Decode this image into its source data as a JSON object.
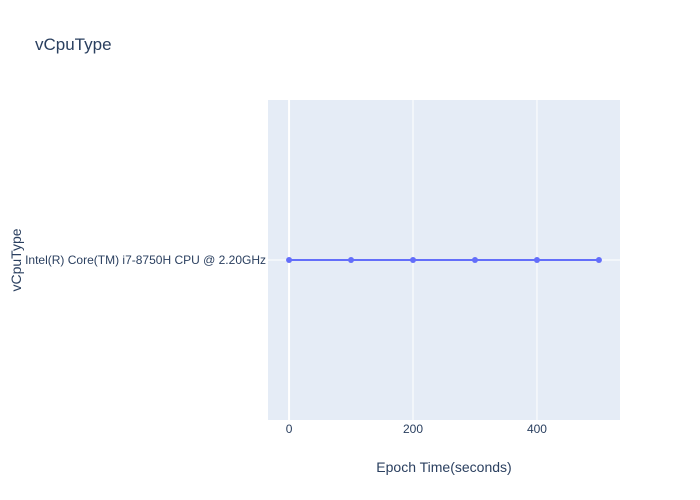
{
  "chart_data": {
    "type": "line",
    "title": "vCpuType",
    "xlabel": "Epoch Time(seconds)",
    "ylabel": "vCpuType",
    "x": [
      0,
      100,
      200,
      300,
      400,
      500
    ],
    "categories_y": [
      "Intel(R) Core(TM) i7-8750H CPU @ 2.20GHz"
    ],
    "series": [
      {
        "values": [
          "Intel(R) Core(TM) i7-8750H CPU @ 2.20GHz",
          "Intel(R) Core(TM) i7-8750H CPU @ 2.20GHz",
          "Intel(R) Core(TM) i7-8750H CPU @ 2.20GHz",
          "Intel(R) Core(TM) i7-8750H CPU @ 2.20GHz",
          "Intel(R) Core(TM) i7-8750H CPU @ 2.20GHz",
          "Intel(R) Core(TM) i7-8750H CPU @ 2.20GHz"
        ],
        "color": "#636efa"
      }
    ],
    "xlim": [
      -34,
      534
    ],
    "xticks": [
      0,
      200,
      400
    ],
    "grid": true,
    "legend": "none",
    "plot_bg": "#e5ecf6"
  }
}
